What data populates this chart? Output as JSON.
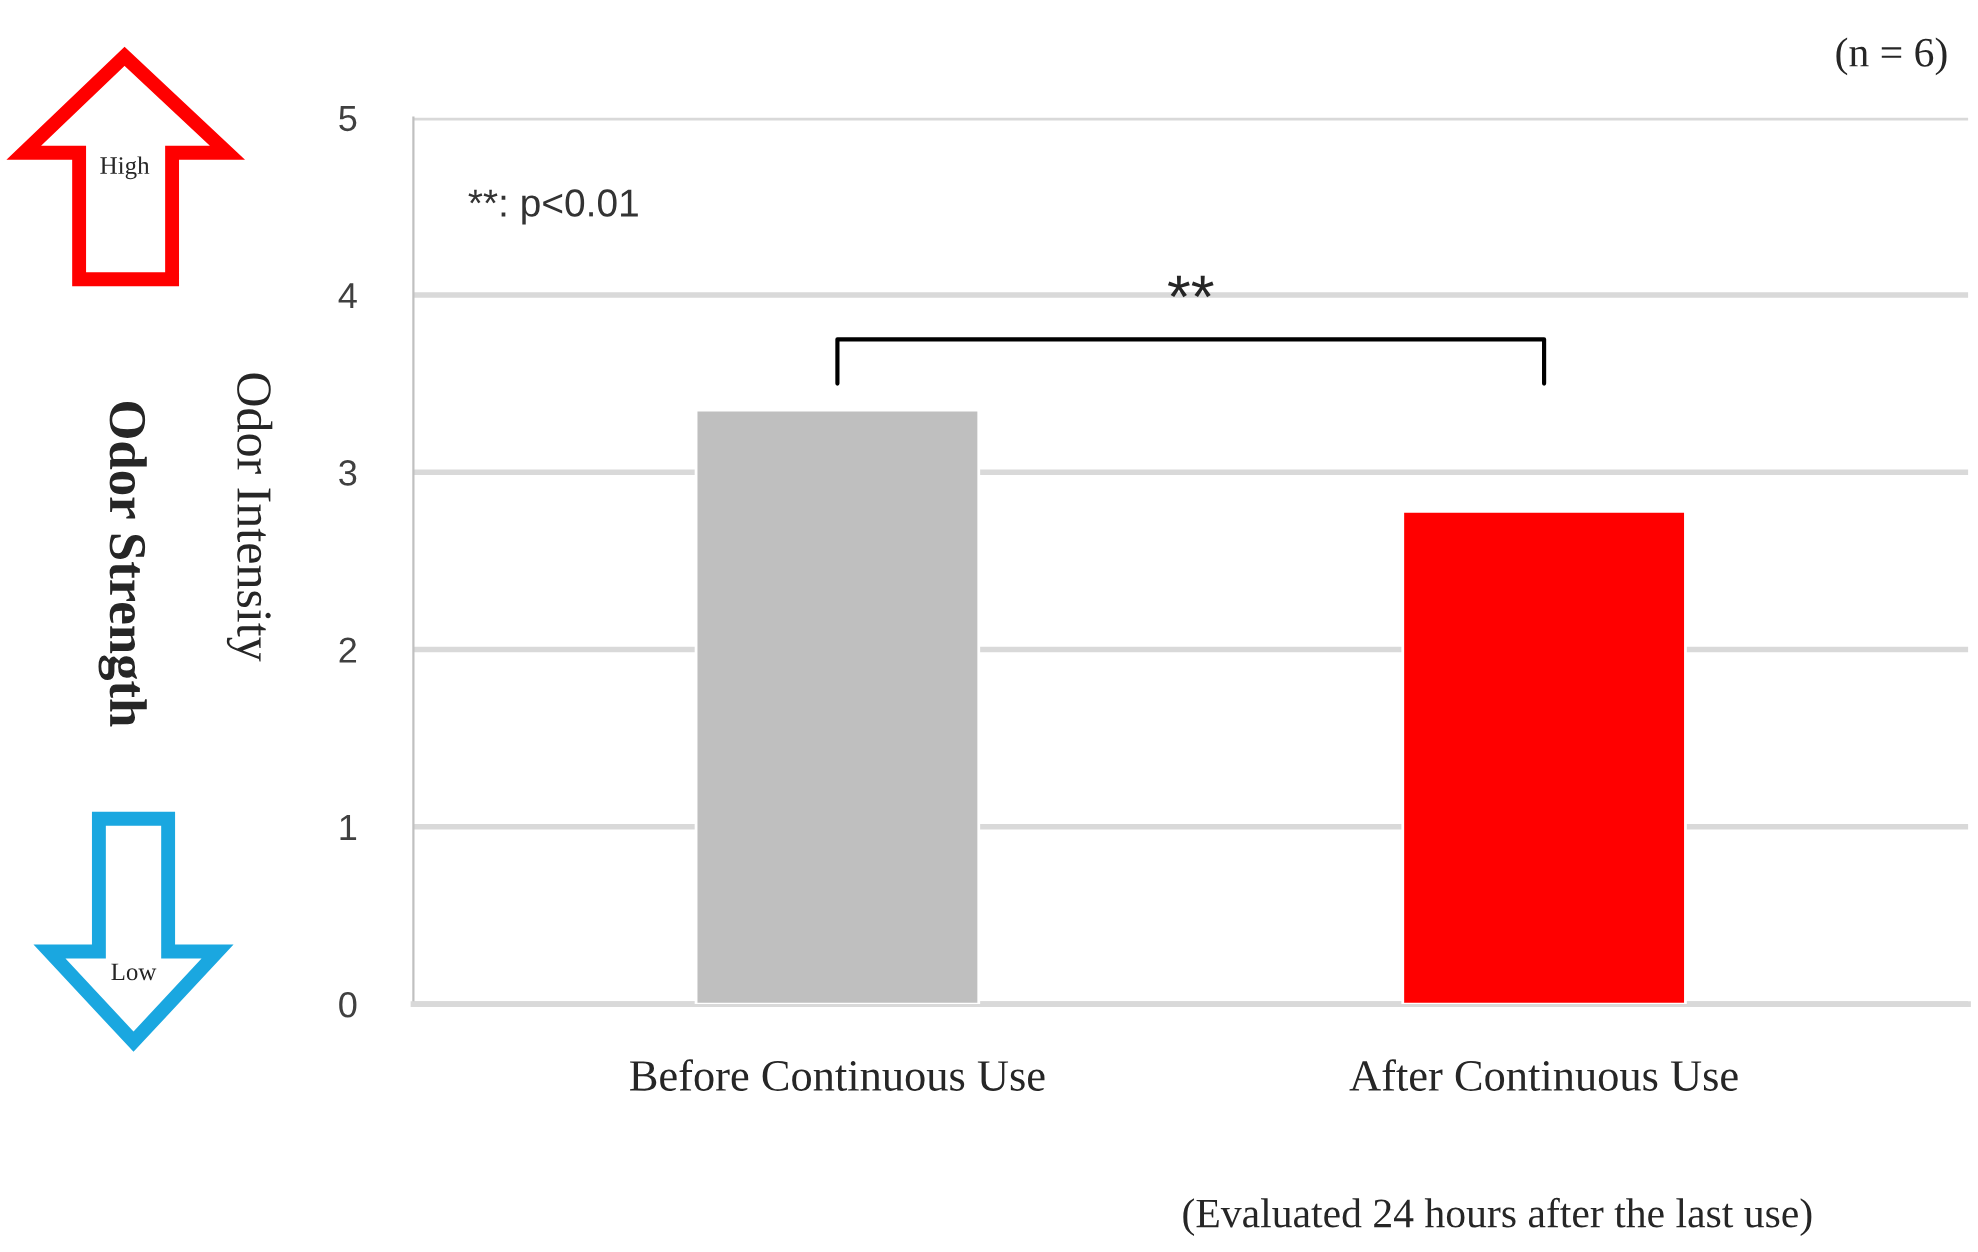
{
  "chart_data": {
    "type": "bar",
    "categories": [
      "Before Continuous Use",
      "After Continuous Use"
    ],
    "values": [
      3.35,
      2.78
    ],
    "colors": [
      "#bfbfbf",
      "#ff0000"
    ],
    "ylabel": "Odor Intensity",
    "ylim": [
      0,
      5
    ],
    "yticks": [
      0,
      1,
      2,
      3,
      4,
      5
    ],
    "grid": "y",
    "annotations": [
      "(n = 6)",
      "**: p<0.01",
      "**",
      "Odor Strength",
      "High",
      "Low",
      "(Evaluated 24 hours after the last use)"
    ]
  }
}
